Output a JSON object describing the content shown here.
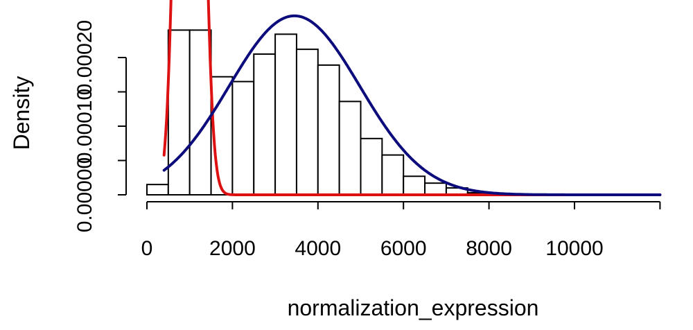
{
  "chart_data": {
    "type": "bar",
    "title": "",
    "xlabel": "normalization_expression",
    "ylabel": "Density",
    "xlim": [
      0,
      12000
    ],
    "ylim": [
      0,
      0.0002
    ],
    "x_ticks": [
      0,
      2000,
      4000,
      6000,
      8000,
      10000
    ],
    "y_ticks": [
      "0.00000",
      "0.00005",
      "0.00010",
      "0.00015",
      "0.00020"
    ],
    "y_tick_labels_shown": [
      "0.00000",
      "0.00010",
      "0.00020"
    ],
    "bins": [
      {
        "x0": 0,
        "x1": 500,
        "density": 1.5e-05
      },
      {
        "x0": 500,
        "x1": 1000,
        "density": 0.00024
      },
      {
        "x0": 1000,
        "x1": 1500,
        "density": 0.00024
      },
      {
        "x0": 1500,
        "x1": 2000,
        "density": 0.000172
      },
      {
        "x0": 2000,
        "x1": 2500,
        "density": 0.000165
      },
      {
        "x0": 2500,
        "x1": 3000,
        "density": 0.000205
      },
      {
        "x0": 3000,
        "x1": 3500,
        "density": 0.000234
      },
      {
        "x0": 3500,
        "x1": 4000,
        "density": 0.000212
      },
      {
        "x0": 4000,
        "x1": 4500,
        "density": 0.000189
      },
      {
        "x0": 4500,
        "x1": 5000,
        "density": 0.000136
      },
      {
        "x0": 5000,
        "x1": 5500,
        "density": 8.2e-05
      },
      {
        "x0": 5500,
        "x1": 6000,
        "density": 5.8e-05
      },
      {
        "x0": 6000,
        "x1": 6500,
        "density": 2.7e-05
      },
      {
        "x0": 6500,
        "x1": 7000,
        "density": 1.7e-05
      },
      {
        "x0": 7000,
        "x1": 7500,
        "density": 1e-05
      },
      {
        "x0": 7500,
        "x1": 8000,
        "density": 3e-06
      },
      {
        "x0": 8000,
        "x1": 8500,
        "density": 2e-06
      },
      {
        "x0": 8500,
        "x1": 9000,
        "density": 1e-06
      }
    ],
    "series": [
      {
        "kind": "normal_curve",
        "color": "#dd1111",
        "mean": 1000,
        "sd": 230,
        "x_range": [
          400,
          12000
        ]
      },
      {
        "kind": "normal_curve",
        "color": "#0c0c7c",
        "mean": 3450,
        "sd": 1530,
        "x_range": [
          400,
          12000
        ]
      }
    ]
  }
}
